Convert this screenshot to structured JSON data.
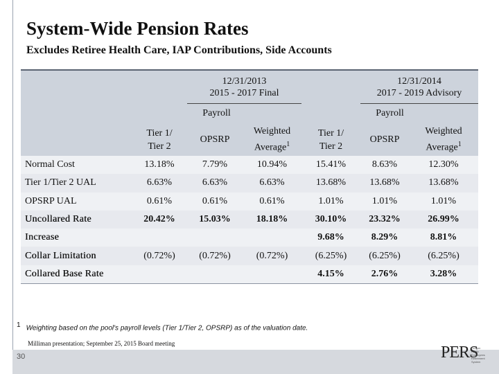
{
  "header": {
    "title": "System-Wide Pension Rates",
    "subtitle": "Excludes Retiree Health Care, IAP Contributions, Side Accounts"
  },
  "table": {
    "groups": [
      {
        "lines": [
          "12/31/2013",
          "2015 - 2017 Final"
        ],
        "sub": "Payroll"
      },
      {
        "lines": [
          "12/31/2014",
          "2017 - 2019 Advisory"
        ],
        "sub": "Payroll"
      }
    ],
    "columns": [
      {
        "lines": [
          "Tier 1/",
          "Tier 2"
        ]
      },
      {
        "lines": [
          "OPSRP"
        ]
      },
      {
        "lines": [
          "Weighted",
          "Average"
        ],
        "sup": "1"
      },
      {
        "lines": [
          "Tier 1/",
          "Tier 2"
        ]
      },
      {
        "lines": [
          "OPSRP"
        ]
      },
      {
        "lines": [
          "Weighted",
          "Average"
        ],
        "sup": "1"
      }
    ],
    "rows": [
      [
        "Normal Cost",
        "13.18%",
        "7.79%",
        "10.94%",
        "15.41%",
        "8.63%",
        "12.30%"
      ],
      [
        "Tier 1/Tier 2 UAL",
        "6.63%",
        "6.63%",
        "6.63%",
        "13.68%",
        "13.68%",
        "13.68%"
      ],
      [
        "OPSRP UAL",
        "0.61%",
        "0.61%",
        "0.61%",
        "1.01%",
        "1.01%",
        "1.01%"
      ],
      [
        "Uncollared Rate",
        "20.42%",
        "15.03%",
        "18.18%",
        "30.10%",
        "23.32%",
        "26.99%"
      ],
      [
        "Increase",
        null,
        null,
        null,
        "9.68%",
        "8.29%",
        "8.81%"
      ],
      [
        "Collar Limitation",
        "(0.72%)",
        "(0.72%)",
        "(0.72%)",
        "(6.25%)",
        "(6.25%)",
        "(6.25%)"
      ],
      [
        "Collared Base Rate",
        null,
        null,
        null,
        "4.15%",
        "2.76%",
        "3.28%"
      ]
    ]
  },
  "footnote": {
    "marker": "1",
    "text": "Weighting based on the pool's payroll levels (Tier 1/Tier 2, OPSRP) as of the valuation date."
  },
  "source": "Milliman presentation; September 25, 2015 Board meeting",
  "page_number": "30",
  "logo": {
    "text": "PERS",
    "tagline": "Oregon Public Employees Retirement System"
  }
}
